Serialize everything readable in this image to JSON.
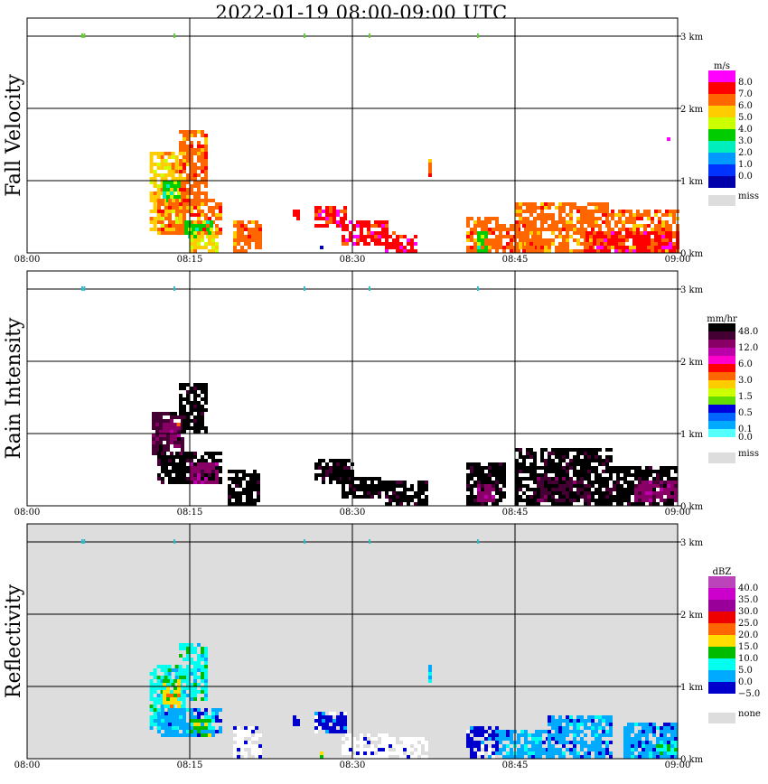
{
  "title": "2022-01-19   08:00-09:00 UTC",
  "chart_data": [
    {
      "type": "heatmap",
      "panel": "Fall Velocity",
      "ylabel": "Fall Velocity",
      "x_ticks": [
        "08:00",
        "08:15",
        "08:30",
        "08:45",
        "09:00"
      ],
      "y_ticks": [
        "0 km",
        "1 km",
        "2 km",
        "3 km"
      ],
      "xlim": [
        "08:00",
        "09:00"
      ],
      "ylim_km": [
        0,
        3
      ],
      "background": "#ffffff",
      "colorbar": {
        "unit": "m/s",
        "labels": [
          "8.0",
          "7.0",
          "6.0",
          "5.0",
          "4.0",
          "3.0",
          "2.0",
          "1.0",
          "0.0"
        ],
        "colors": [
          "#ff00ff",
          "#ff0000",
          "#ff6600",
          "#ffcc00",
          "#ccff00",
          "#00cc00",
          "#00eebb",
          "#0099ff",
          "#0033ff",
          "#0000aa"
        ],
        "missing_label": "miss",
        "missing_color": "#dddddd"
      },
      "echoes": [
        {
          "t0": 11.3,
          "t1": 14.5,
          "h0": 0.3,
          "h1": 1.4,
          "level": 3
        },
        {
          "t0": 14.0,
          "t1": 16.5,
          "h0": 0.7,
          "h1": 1.7,
          "level": 2
        },
        {
          "t0": 12.5,
          "t1": 14.0,
          "h0": 0.7,
          "h1": 1.0,
          "level": 5
        },
        {
          "t0": 12.0,
          "t1": 18.0,
          "h0": 0.25,
          "h1": 0.75,
          "level": 2
        },
        {
          "t0": 14.5,
          "t1": 17.0,
          "h0": 0.2,
          "h1": 0.45,
          "level": 5
        },
        {
          "t0": 15.0,
          "t1": 17.5,
          "h0": 0.0,
          "h1": 0.3,
          "level": 3
        },
        {
          "t0": 19.0,
          "t1": 21.5,
          "h0": 0.0,
          "h1": 0.45,
          "level": 2
        },
        {
          "t0": 24.5,
          "t1": 25.0,
          "h0": 0.45,
          "h1": 0.6,
          "level": 1
        },
        {
          "t0": 26.5,
          "t1": 29.5,
          "h0": 0.35,
          "h1": 0.65,
          "level": 1
        },
        {
          "t0": 29.0,
          "t1": 33.0,
          "h0": 0.1,
          "h1": 0.45,
          "level": 1
        },
        {
          "t0": 33.0,
          "t1": 36.0,
          "h0": 0.0,
          "h1": 0.3,
          "level": 1
        },
        {
          "t0": 37.0,
          "t1": 37.3,
          "h0": 1.05,
          "h1": 1.3,
          "level": 2
        },
        {
          "t0": 40.5,
          "t1": 43.5,
          "h0": 0.0,
          "h1": 0.5,
          "level": 2
        },
        {
          "t0": 41.5,
          "t1": 42.5,
          "h0": 0.0,
          "h1": 0.3,
          "level": 5
        },
        {
          "t0": 43.5,
          "t1": 47.5,
          "h0": 0.0,
          "h1": 0.4,
          "level": 2
        },
        {
          "t0": 45.0,
          "t1": 53.5,
          "h0": 0.0,
          "h1": 0.7,
          "level": 2
        },
        {
          "t0": 53.5,
          "t1": 60.0,
          "h0": 0.0,
          "h1": 0.6,
          "level": 2
        },
        {
          "t0": 51.5,
          "t1": 60.0,
          "h0": 0.0,
          "h1": 0.3,
          "level": 1
        },
        {
          "t0": 59.0,
          "t1": 59.2,
          "h0": 1.55,
          "h1": 1.6,
          "level": 1
        },
        {
          "t0": 27.0,
          "t1": 27.2,
          "h0": 0.0,
          "h1": 0.1,
          "level": 9
        }
      ],
      "top_marks": [
        5.0,
        5.2,
        13.5,
        25.5,
        31.5,
        41.5
      ]
    },
    {
      "type": "heatmap",
      "panel": "Rain Intensity",
      "ylabel": "Rain Intensity",
      "x_ticks": [
        "08:00",
        "08:15",
        "08:30",
        "08:45",
        "09:00"
      ],
      "y_ticks": [
        "0 km",
        "1 km",
        "2 km",
        "3 km"
      ],
      "xlim": [
        "08:00",
        "09:00"
      ],
      "ylim_km": [
        0,
        3
      ],
      "background": "#ffffff",
      "colorbar": {
        "unit": "mm/hr",
        "labels": [
          "48.0",
          "",
          "12.0",
          "",
          "6.0",
          "",
          "3.0",
          "",
          "1.5",
          "",
          "0.5",
          "",
          "0.1",
          "0.0"
        ],
        "colors": [
          "#000000",
          "#440033",
          "#880066",
          "#bb00aa",
          "#ff00cc",
          "#ff0000",
          "#ff6600",
          "#ffcc00",
          "#ccff00",
          "#66dd00",
          "#0000dd",
          "#0066ff",
          "#00aaff",
          "#55ffff",
          "#ffffff"
        ],
        "missing_label": "miss",
        "missing_color": "#dddddd"
      },
      "echoes": [
        {
          "t0": 11.5,
          "t1": 14.5,
          "h0": 0.7,
          "h1": 1.3,
          "level": 1
        },
        {
          "t0": 14.0,
          "t1": 16.5,
          "h0": 1.0,
          "h1": 1.7,
          "level": 0
        },
        {
          "t0": 12.5,
          "t1": 14.0,
          "h0": 0.8,
          "h1": 1.15,
          "level": 2
        },
        {
          "t0": 13.8,
          "t1": 14.1,
          "h0": 1.1,
          "h1": 1.2,
          "level": 6
        },
        {
          "t0": 12.0,
          "t1": 18.0,
          "h0": 0.3,
          "h1": 0.75,
          "level": 0
        },
        {
          "t0": 15.0,
          "t1": 17.5,
          "h0": 0.3,
          "h1": 0.6,
          "level": 2
        },
        {
          "t0": 18.5,
          "t1": 21.5,
          "h0": 0.0,
          "h1": 0.5,
          "level": 0
        },
        {
          "t0": 26.5,
          "t1": 30.0,
          "h0": 0.3,
          "h1": 0.65,
          "level": 0
        },
        {
          "t0": 29.0,
          "t1": 33.0,
          "h0": 0.1,
          "h1": 0.4,
          "level": 0
        },
        {
          "t0": 33.0,
          "t1": 37.0,
          "h0": 0.0,
          "h1": 0.35,
          "level": 0
        },
        {
          "t0": 40.5,
          "t1": 44.0,
          "h0": 0.0,
          "h1": 0.6,
          "level": 0
        },
        {
          "t0": 41.5,
          "t1": 43.0,
          "h0": 0.05,
          "h1": 0.3,
          "level": 2
        },
        {
          "t0": 45.0,
          "t1": 54.0,
          "h0": 0.0,
          "h1": 0.8,
          "level": 0
        },
        {
          "t0": 47.0,
          "t1": 52.0,
          "h0": 0.05,
          "h1": 0.4,
          "level": 1
        },
        {
          "t0": 54.0,
          "t1": 60.0,
          "h0": 0.0,
          "h1": 0.55,
          "level": 0
        },
        {
          "t0": 56.0,
          "t1": 60.0,
          "h0": 0.05,
          "h1": 0.35,
          "level": 2
        }
      ],
      "top_marks": [
        5.0,
        5.2,
        13.5,
        25.5,
        31.5,
        41.5
      ]
    },
    {
      "type": "heatmap",
      "panel": "Reflectivity",
      "ylabel": "Reflectivity",
      "x_ticks": [
        "08:00",
        "08:15",
        "08:30",
        "08:45",
        "09:00"
      ],
      "y_ticks": [
        "0 km",
        "1 km",
        "2 km",
        "3 km"
      ],
      "xlim": [
        "08:00",
        "09:00"
      ],
      "ylim_km": [
        0,
        3
      ],
      "background": "#dddddd",
      "colorbar": {
        "unit": "dBZ",
        "labels": [
          "40.0",
          "35.0",
          "30.0",
          "25.0",
          "20.0",
          "15.0",
          "10.0",
          "5.0",
          "0.0",
          "−5.0"
        ],
        "colors": [
          "#bb44bb",
          "#cc00cc",
          "#990099",
          "#ee0000",
          "#ff6600",
          "#ffdd00",
          "#00bb00",
          "#00ffee",
          "#00aaff",
          "#0000cc",
          "#ffffff"
        ],
        "missing_label": "none",
        "missing_color": "#dddddd"
      },
      "echoes": [
        {
          "t0": 11.3,
          "t1": 14.5,
          "h0": 0.4,
          "h1": 1.3,
          "level": 7
        },
        {
          "t0": 14.0,
          "t1": 16.5,
          "h0": 0.8,
          "h1": 1.6,
          "level": 7
        },
        {
          "t0": 12.5,
          "t1": 14.0,
          "h0": 0.7,
          "h1": 1.1,
          "level": 5
        },
        {
          "t0": 12.0,
          "t1": 18.0,
          "h0": 0.3,
          "h1": 0.7,
          "level": 8
        },
        {
          "t0": 15.0,
          "t1": 17.0,
          "h0": 0.3,
          "h1": 0.55,
          "level": 6
        },
        {
          "t0": 19.0,
          "t1": 21.5,
          "h0": 0.0,
          "h1": 0.45,
          "level": 10
        },
        {
          "t0": 24.5,
          "t1": 25.0,
          "h0": 0.45,
          "h1": 0.6,
          "level": 9
        },
        {
          "t0": 26.5,
          "t1": 29.5,
          "h0": 0.35,
          "h1": 0.65,
          "level": 9
        },
        {
          "t0": 29.0,
          "t1": 33.0,
          "h0": 0.0,
          "h1": 0.35,
          "level": 10
        },
        {
          "t0": 33.0,
          "t1": 37.0,
          "h0": 0.0,
          "h1": 0.3,
          "level": 10
        },
        {
          "t0": 37.0,
          "t1": 37.3,
          "h0": 1.05,
          "h1": 1.3,
          "level": 8
        },
        {
          "t0": 40.5,
          "t1": 43.5,
          "h0": 0.0,
          "h1": 0.45,
          "level": 9
        },
        {
          "t0": 43.5,
          "t1": 48.0,
          "h0": 0.0,
          "h1": 0.4,
          "level": 8
        },
        {
          "t0": 48.0,
          "t1": 54.0,
          "h0": 0.0,
          "h1": 0.6,
          "level": 8
        },
        {
          "t0": 55.0,
          "t1": 60.0,
          "h0": 0.0,
          "h1": 0.5,
          "level": 8
        },
        {
          "t0": 58.0,
          "t1": 60.0,
          "h0": 0.05,
          "h1": 0.25,
          "level": 7
        },
        {
          "t0": 27.0,
          "t1": 27.2,
          "h0": 0.0,
          "h1": 0.1,
          "level": 6
        }
      ],
      "top_marks": [
        5.0,
        5.2,
        13.5,
        25.5,
        31.5,
        41.5
      ]
    }
  ]
}
